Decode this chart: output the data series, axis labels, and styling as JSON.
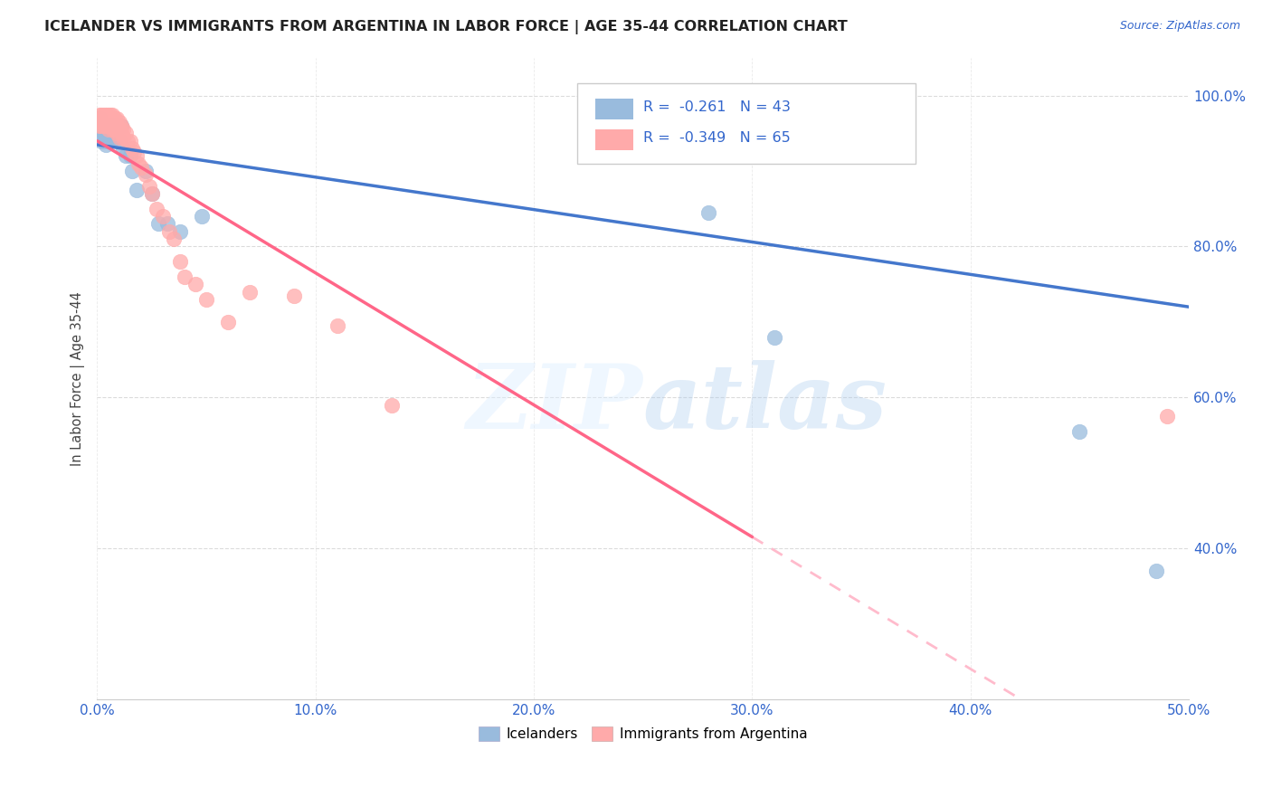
{
  "title": "ICELANDER VS IMMIGRANTS FROM ARGENTINA IN LABOR FORCE | AGE 35-44 CORRELATION CHART",
  "source": "Source: ZipAtlas.com",
  "ylabel": "In Labor Force | Age 35-44",
  "xmin": 0.0,
  "xmax": 0.5,
  "ymin": 0.2,
  "ymax": 1.05,
  "icelanders": {
    "x": [
      0.001,
      0.001,
      0.001,
      0.002,
      0.002,
      0.002,
      0.002,
      0.003,
      0.003,
      0.003,
      0.003,
      0.004,
      0.004,
      0.004,
      0.004,
      0.005,
      0.005,
      0.005,
      0.006,
      0.006,
      0.006,
      0.007,
      0.007,
      0.008,
      0.008,
      0.009,
      0.01,
      0.011,
      0.012,
      0.013,
      0.015,
      0.016,
      0.018,
      0.022,
      0.025,
      0.028,
      0.032,
      0.038,
      0.048,
      0.28,
      0.31,
      0.45,
      0.485
    ],
    "y": [
      0.97,
      0.96,
      0.955,
      0.96,
      0.955,
      0.95,
      0.94,
      0.96,
      0.955,
      0.95,
      0.94,
      0.955,
      0.95,
      0.945,
      0.935,
      0.96,
      0.95,
      0.94,
      0.96,
      0.95,
      0.94,
      0.96,
      0.95,
      0.96,
      0.95,
      0.96,
      0.94,
      0.96,
      0.93,
      0.92,
      0.92,
      0.9,
      0.875,
      0.9,
      0.87,
      0.83,
      0.83,
      0.82,
      0.84,
      0.845,
      0.68,
      0.555,
      0.37
    ]
  },
  "argentina": {
    "x": [
      0.001,
      0.001,
      0.001,
      0.001,
      0.002,
      0.002,
      0.002,
      0.002,
      0.003,
      0.003,
      0.003,
      0.003,
      0.004,
      0.004,
      0.004,
      0.004,
      0.005,
      0.005,
      0.005,
      0.005,
      0.006,
      0.006,
      0.006,
      0.006,
      0.007,
      0.007,
      0.007,
      0.008,
      0.008,
      0.008,
      0.009,
      0.009,
      0.009,
      0.01,
      0.01,
      0.01,
      0.011,
      0.011,
      0.012,
      0.012,
      0.013,
      0.014,
      0.015,
      0.016,
      0.017,
      0.018,
      0.019,
      0.02,
      0.022,
      0.024,
      0.025,
      0.027,
      0.03,
      0.033,
      0.035,
      0.038,
      0.04,
      0.045,
      0.05,
      0.06,
      0.07,
      0.09,
      0.11,
      0.135,
      0.49
    ],
    "y": [
      0.975,
      0.97,
      0.965,
      0.96,
      0.975,
      0.97,
      0.965,
      0.96,
      0.975,
      0.97,
      0.965,
      0.96,
      0.975,
      0.97,
      0.965,
      0.96,
      0.975,
      0.97,
      0.965,
      0.955,
      0.975,
      0.97,
      0.965,
      0.96,
      0.975,
      0.965,
      0.955,
      0.97,
      0.96,
      0.955,
      0.97,
      0.96,
      0.95,
      0.965,
      0.955,
      0.945,
      0.96,
      0.95,
      0.955,
      0.945,
      0.95,
      0.94,
      0.94,
      0.93,
      0.925,
      0.92,
      0.91,
      0.905,
      0.895,
      0.88,
      0.87,
      0.85,
      0.84,
      0.82,
      0.81,
      0.78,
      0.76,
      0.75,
      0.73,
      0.7,
      0.74,
      0.735,
      0.695,
      0.59,
      0.575
    ]
  },
  "r_icelanders": -0.261,
  "n_icelanders": 43,
  "r_argentina": -0.349,
  "n_argentina": 65,
  "color_icelanders": "#99BBDD",
  "color_argentina": "#FFAAAA",
  "color_line_icelanders": "#4477CC",
  "color_line_argentina": "#FF6688",
  "color_line_argentina_dashed": "#FFBBCC",
  "ytick_labels": [
    "40.0%",
    "60.0%",
    "80.0%",
    "100.0%"
  ],
  "ytick_vals": [
    0.4,
    0.6,
    0.8,
    1.0
  ],
  "xtick_labels": [
    "0.0%",
    "10.0%",
    "20.0%",
    "30.0%",
    "40.0%",
    "50.0%"
  ],
  "xtick_vals": [
    0.0,
    0.1,
    0.2,
    0.3,
    0.4,
    0.5
  ],
  "watermark": "ZIPatlas",
  "background_color": "#FFFFFF",
  "grid_color": "#CCCCCC"
}
